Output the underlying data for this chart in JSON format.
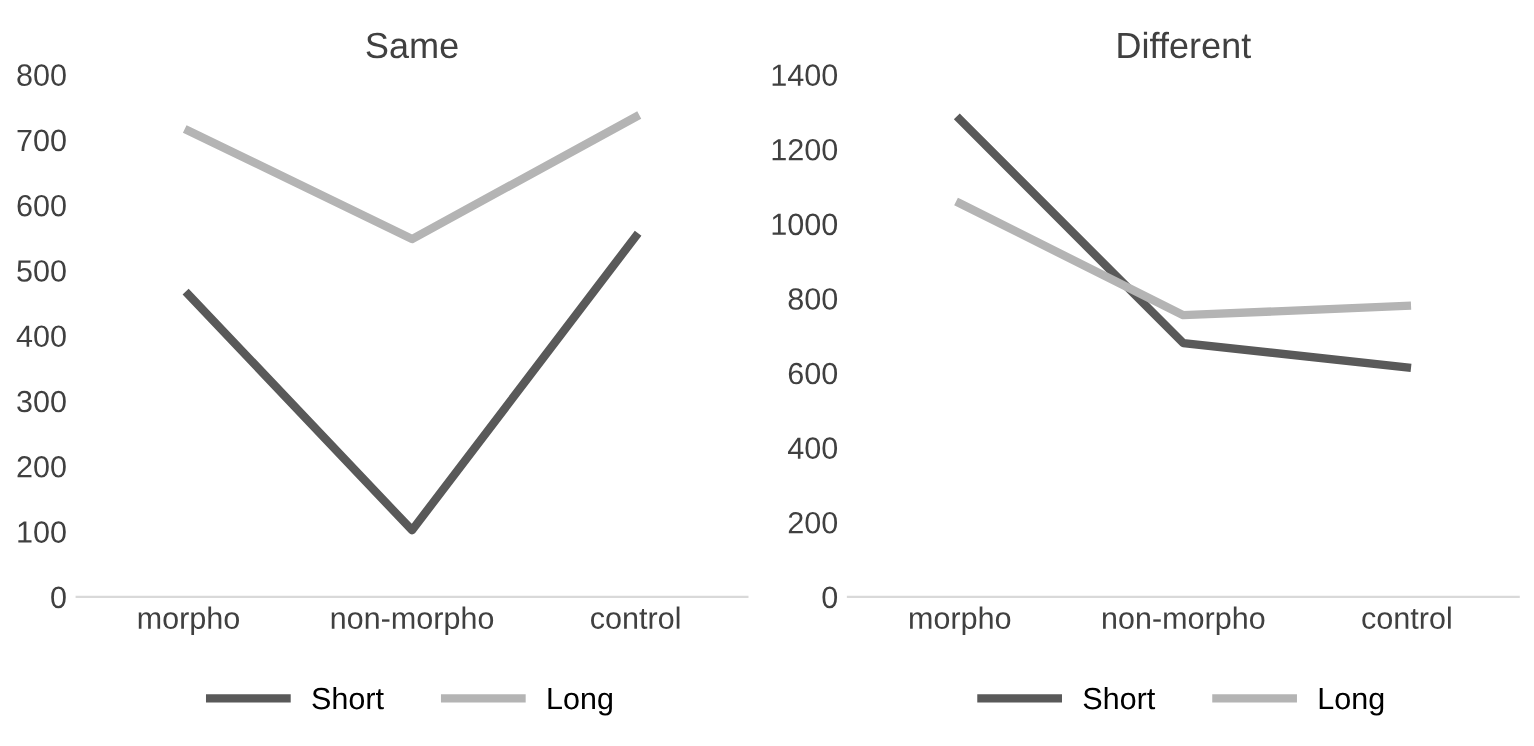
{
  "chart_data": [
    {
      "type": "line",
      "title": "Same",
      "categories": [
        "morpho",
        "non-morpho",
        "control"
      ],
      "ylim": [
        0,
        800
      ],
      "yticks": [
        0,
        100,
        200,
        300,
        400,
        500,
        600,
        700,
        800
      ],
      "grid": false,
      "legend": "bottom",
      "marker": "none",
      "series": [
        {
          "name": "Short",
          "color": "#595959",
          "values": [
            463,
            102,
            552
          ]
        },
        {
          "name": "Long",
          "color": "#b4b4b4",
          "values": [
            714,
            548,
            735
          ]
        }
      ]
    },
    {
      "type": "line",
      "title": "Different",
      "categories": [
        "morpho",
        "non-morpho",
        "control"
      ],
      "ylim": [
        0,
        1400
      ],
      "yticks": [
        0,
        200,
        400,
        600,
        800,
        1000,
        1200,
        1400
      ],
      "grid": false,
      "legend": "bottom",
      "marker": "none",
      "series": [
        {
          "name": "Short",
          "color": "#595959",
          "values": [
            1280,
            680,
            615
          ]
        },
        {
          "name": "Long",
          "color": "#b4b4b4",
          "values": [
            1055,
            755,
            780
          ]
        }
      ]
    }
  ]
}
